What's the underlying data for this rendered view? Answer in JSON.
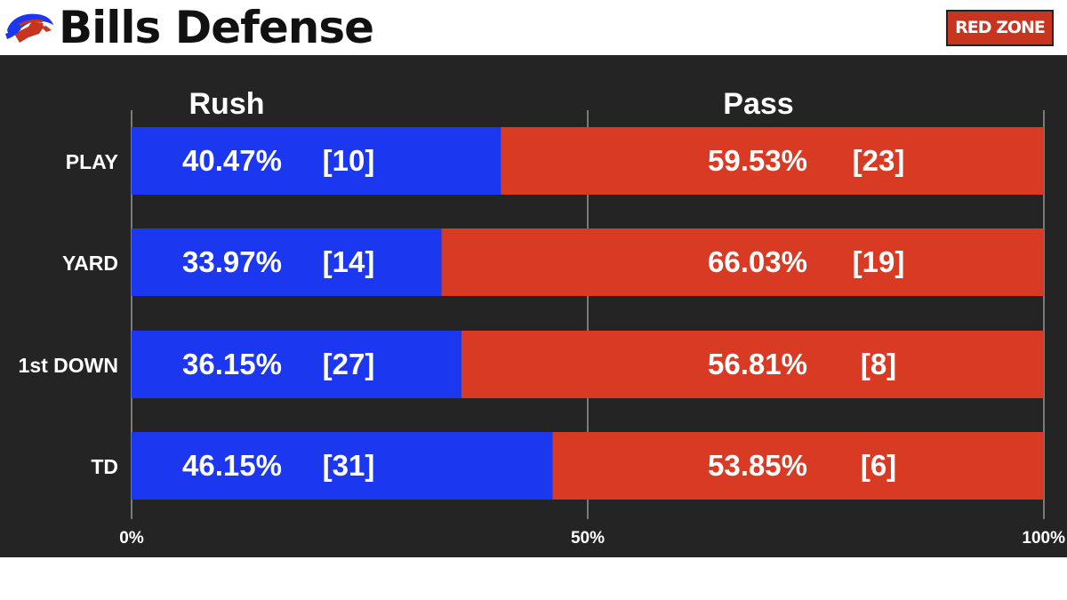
{
  "header": {
    "title": "Bills Defense",
    "badge": "RED ZONE",
    "logo_icon": "buffalo-logo-icon"
  },
  "colors": {
    "rush": "#1c37f0",
    "pass": "#d93a23",
    "panel": "#242424",
    "grid": "#cfcfcf"
  },
  "chart_data": {
    "type": "bar",
    "orientation": "horizontal",
    "stacked": true,
    "percent_stacked": true,
    "column_headers": [
      "Rush",
      "Pass"
    ],
    "categories": [
      "PLAY",
      "YARD",
      "1st DOWN",
      "TD"
    ],
    "series": [
      {
        "name": "Rush",
        "values": [
          40.47,
          33.97,
          36.15,
          46.15
        ],
        "labels": [
          "40.47%",
          "33.97%",
          "36.15%",
          "46.15%"
        ],
        "ranks": [
          "[10]",
          "[14]",
          "[27]",
          "[31]"
        ]
      },
      {
        "name": "Pass",
        "values": [
          59.53,
          66.03,
          56.81,
          53.85
        ],
        "labels": [
          "59.53%",
          "66.03%",
          "56.81%",
          "53.85%"
        ],
        "ranks": [
          "[23]",
          "[19]",
          "[8]",
          "[6]"
        ]
      }
    ],
    "xlim": [
      0,
      100
    ],
    "xticks": [
      0,
      50,
      100
    ],
    "xtick_labels": [
      "0%",
      "50%",
      "100%"
    ],
    "grid": true
  }
}
